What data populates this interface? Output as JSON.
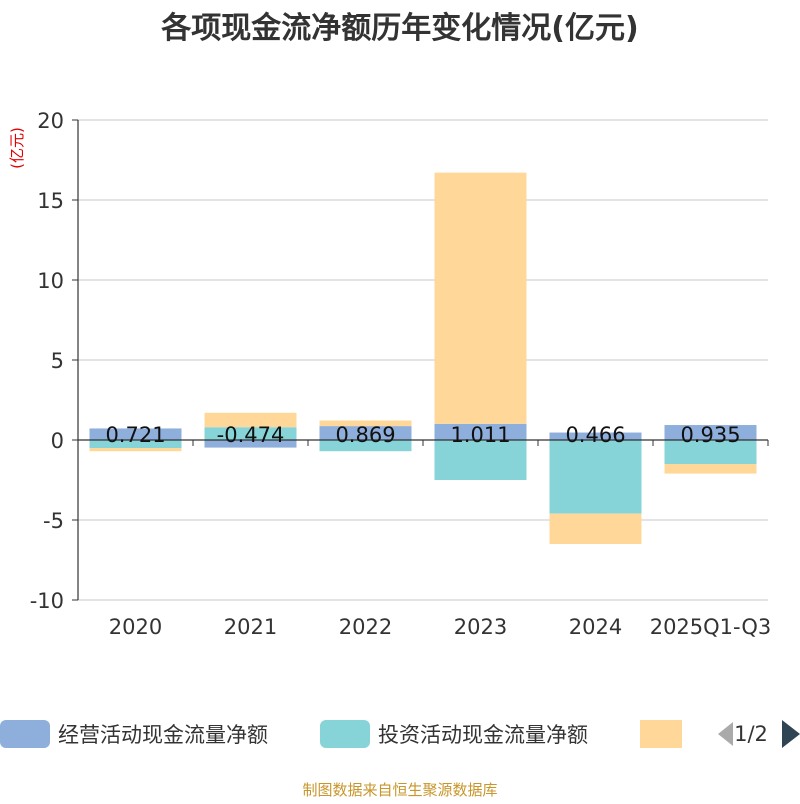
{
  "chart_data": {
    "type": "bar",
    "stacked": true,
    "title": "各项现金流净额历年变化情况(亿元)",
    "unit_label": "(亿元)",
    "categories": [
      "2020",
      "2021",
      "2022",
      "2023",
      "2024",
      "2025Q1-Q3"
    ],
    "ylim": [
      -10,
      20
    ],
    "yticks": [
      20,
      15,
      10,
      5,
      0,
      -5,
      -10
    ],
    "series": [
      {
        "name": "经营活动现金流量净额",
        "color": "#8eaedb",
        "values": [
          0.721,
          -0.474,
          0.869,
          1.011,
          0.466,
          0.935
        ],
        "labels": [
          "0.721",
          "-0.474",
          "0.869",
          "1.011",
          "0.466",
          "0.935"
        ]
      },
      {
        "name": "投资活动现金流量净额",
        "color": "#86d4d8",
        "values": [
          -0.5,
          0.8,
          -0.7,
          -2.5,
          -4.6,
          -1.5
        ]
      },
      {
        "name": "",
        "color": "#ffd899",
        "values": [
          -0.2,
          0.9,
          0.35,
          15.7,
          -1.9,
          -0.6
        ]
      }
    ]
  },
  "legend": {
    "page": "1/2"
  },
  "source_text": "制图数据来自恒生聚源数据库",
  "colors": {
    "title": "#333333",
    "unit": "#e00000",
    "axis": "#333333",
    "grid": "#c8c8c8",
    "source": "#c8962a",
    "pager_active": "#2f4554",
    "pager_inactive": "#aaaaaa"
  }
}
